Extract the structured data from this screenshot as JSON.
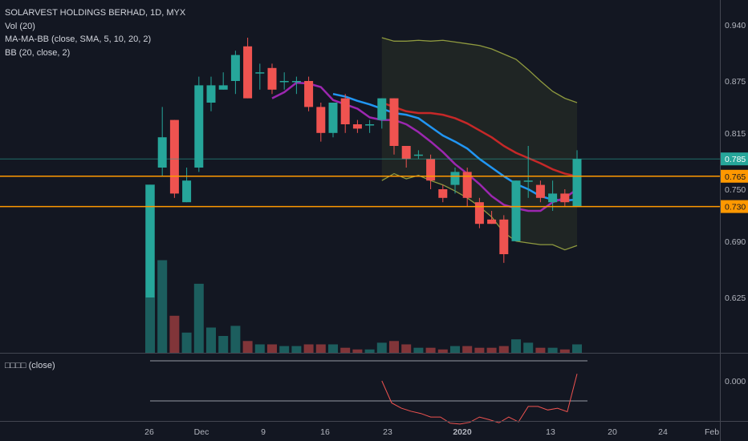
{
  "legend": {
    "title": "SOLARVEST HOLDINGS BERHAD, 1D, MYX",
    "vol": "Vol (20)",
    "ma": "MA-MA-BB (close, SMA, 5, 10, 20, 2)",
    "bb": "BB (20, close, 2)"
  },
  "oscillator": {
    "label": "□□□□ (close)",
    "tick": "0.000",
    "values": [
      0,
      -0.5,
      -0.62,
      -0.69,
      -0.74,
      -0.82,
      -0.82,
      -0.96,
      -0.98,
      -0.94,
      -0.82,
      -0.88,
      -0.95,
      -0.82,
      -0.93,
      -0.58,
      -0.58,
      -0.66,
      -0.62,
      -0.7,
      0.16
    ]
  },
  "price_axis": {
    "ticks": [
      "0.940",
      "0.875",
      "0.815",
      "0.750",
      "0.690",
      "0.625"
    ],
    "last_price": "0.785",
    "hline_upper": "0.765",
    "hline_lower": "0.730"
  },
  "time_axis": {
    "labels": [
      "26",
      "Dec",
      "9",
      "16",
      "23",
      "2020",
      "13",
      "20",
      "24",
      "Feb"
    ]
  },
  "colors": {
    "background": "#131722",
    "up": "#26a69a",
    "down": "#ef5350",
    "ma_fast": "#2196f3",
    "ma_slow": "#9c27b0",
    "ma_long": "#c62828",
    "bb": "#8f9a3f",
    "hline": "#ff9800",
    "last_price_bg": "#26a69a"
  },
  "chart_data": {
    "type": "candlestick",
    "title": "SOLARVEST HOLDINGS BERHAD, 1D, MYX",
    "ylim": [
      0.555,
      0.955
    ],
    "candles": [
      {
        "o": 0.625,
        "h": 0.755,
        "l": 0.625,
        "c": 0.755,
        "v": 1.0
      },
      {
        "o": 0.775,
        "h": 0.845,
        "l": 0.765,
        "c": 0.81,
        "v": 0.55
      },
      {
        "o": 0.83,
        "h": 0.83,
        "l": 0.74,
        "c": 0.745,
        "v": 0.22
      },
      {
        "o": 0.735,
        "h": 0.775,
        "l": 0.735,
        "c": 0.76,
        "v": 0.12
      },
      {
        "o": 0.775,
        "h": 0.88,
        "l": 0.77,
        "c": 0.87,
        "v": 0.41
      },
      {
        "o": 0.85,
        "h": 0.88,
        "l": 0.84,
        "c": 0.87,
        "v": 0.15
      },
      {
        "o": 0.865,
        "h": 0.885,
        "l": 0.865,
        "c": 0.87,
        "v": 0.1
      },
      {
        "o": 0.875,
        "h": 0.91,
        "l": 0.86,
        "c": 0.905,
        "v": 0.16
      },
      {
        "o": 0.915,
        "h": 0.925,
        "l": 0.855,
        "c": 0.855,
        "v": 0.07
      },
      {
        "o": 0.885,
        "h": 0.895,
        "l": 0.865,
        "c": 0.885,
        "v": 0.05
      },
      {
        "o": 0.89,
        "h": 0.895,
        "l": 0.86,
        "c": 0.865,
        "v": 0.05
      },
      {
        "o": 0.875,
        "h": 0.885,
        "l": 0.865,
        "c": 0.875,
        "v": 0.04
      },
      {
        "o": 0.875,
        "h": 0.88,
        "l": 0.86,
        "c": 0.875,
        "v": 0.04
      },
      {
        "o": 0.875,
        "h": 0.88,
        "l": 0.84,
        "c": 0.845,
        "v": 0.05
      },
      {
        "o": 0.845,
        "h": 0.85,
        "l": 0.805,
        "c": 0.815,
        "v": 0.05
      },
      {
        "o": 0.815,
        "h": 0.85,
        "l": 0.81,
        "c": 0.85,
        "v": 0.05
      },
      {
        "o": 0.855,
        "h": 0.86,
        "l": 0.815,
        "c": 0.825,
        "v": 0.03
      },
      {
        "o": 0.825,
        "h": 0.83,
        "l": 0.815,
        "c": 0.82,
        "v": 0.02
      },
      {
        "o": 0.825,
        "h": 0.83,
        "l": 0.815,
        "c": 0.825,
        "v": 0.02
      },
      {
        "o": 0.83,
        "h": 0.855,
        "l": 0.82,
        "c": 0.855,
        "v": 0.06
      },
      {
        "o": 0.855,
        "h": 0.855,
        "l": 0.79,
        "c": 0.8,
        "v": 0.07
      },
      {
        "o": 0.8,
        "h": 0.8,
        "l": 0.775,
        "c": 0.785,
        "v": 0.05
      },
      {
        "o": 0.79,
        "h": 0.795,
        "l": 0.785,
        "c": 0.79,
        "v": 0.03
      },
      {
        "o": 0.785,
        "h": 0.79,
        "l": 0.75,
        "c": 0.76,
        "v": 0.03
      },
      {
        "o": 0.75,
        "h": 0.755,
        "l": 0.735,
        "c": 0.74,
        "v": 0.02
      },
      {
        "o": 0.755,
        "h": 0.775,
        "l": 0.745,
        "c": 0.77,
        "v": 0.04
      },
      {
        "o": 0.77,
        "h": 0.775,
        "l": 0.73,
        "c": 0.74,
        "v": 0.04
      },
      {
        "o": 0.735,
        "h": 0.74,
        "l": 0.705,
        "c": 0.71,
        "v": 0.03
      },
      {
        "o": 0.715,
        "h": 0.725,
        "l": 0.71,
        "c": 0.71,
        "v": 0.03
      },
      {
        "o": 0.715,
        "h": 0.72,
        "l": 0.665,
        "c": 0.675,
        "v": 0.04
      },
      {
        "o": 0.69,
        "h": 0.76,
        "l": 0.69,
        "c": 0.76,
        "v": 0.08
      },
      {
        "o": 0.76,
        "h": 0.8,
        "l": 0.74,
        "c": 0.76,
        "v": 0.06
      },
      {
        "o": 0.755,
        "h": 0.76,
        "l": 0.735,
        "c": 0.74,
        "v": 0.03
      },
      {
        "o": 0.735,
        "h": 0.76,
        "l": 0.725,
        "c": 0.745,
        "v": 0.03
      },
      {
        "o": 0.745,
        "h": 0.75,
        "l": 0.73,
        "c": 0.735,
        "v": 0.02
      },
      {
        "o": 0.73,
        "h": 0.795,
        "l": 0.73,
        "c": 0.785,
        "v": 0.05
      }
    ],
    "ma5": [
      null,
      null,
      null,
      null,
      null,
      null,
      null,
      null,
      null,
      null,
      0.855,
      0.862,
      0.873,
      0.872,
      0.868,
      0.853,
      0.848,
      0.843,
      0.833,
      0.83,
      0.83,
      0.825,
      0.816,
      0.805,
      0.793,
      0.779,
      0.768,
      0.756,
      0.742,
      0.732,
      0.728,
      0.725,
      0.725,
      0.735,
      0.74,
      0.75
    ],
    "ma10": [
      null,
      null,
      null,
      null,
      null,
      null,
      null,
      null,
      null,
      null,
      null,
      null,
      null,
      null,
      null,
      0.86,
      0.857,
      0.852,
      0.848,
      0.843,
      0.838,
      0.836,
      0.832,
      0.822,
      0.812,
      0.805,
      0.797,
      0.785,
      0.775,
      0.765,
      0.756,
      0.75,
      0.742,
      0.738,
      0.737,
      0.738
    ],
    "ma20": [
      null,
      null,
      null,
      null,
      null,
      null,
      null,
      null,
      null,
      null,
      null,
      null,
      null,
      null,
      null,
      null,
      null,
      null,
      null,
      0.85,
      0.845,
      0.84,
      0.838,
      0.838,
      0.836,
      0.832,
      0.826,
      0.818,
      0.81,
      0.8,
      0.792,
      0.786,
      0.78,
      0.773,
      0.768,
      0.765
    ],
    "bb_upper": [
      null,
      null,
      null,
      null,
      null,
      null,
      null,
      null,
      null,
      null,
      null,
      null,
      null,
      null,
      null,
      null,
      null,
      null,
      null,
      0.925,
      0.921,
      0.921,
      0.922,
      0.921,
      0.922,
      0.92,
      0.918,
      0.916,
      0.912,
      0.906,
      0.9,
      0.888,
      0.875,
      0.863,
      0.855,
      0.85
    ],
    "bb_lower": [
      null,
      null,
      null,
      null,
      null,
      null,
      null,
      null,
      null,
      null,
      null,
      null,
      null,
      null,
      null,
      null,
      null,
      null,
      null,
      0.76,
      0.768,
      0.762,
      0.766,
      0.76,
      0.755,
      0.748,
      0.74,
      0.73,
      0.718,
      0.7,
      0.69,
      0.688,
      0.686,
      0.686,
      0.68,
      0.685
    ]
  }
}
